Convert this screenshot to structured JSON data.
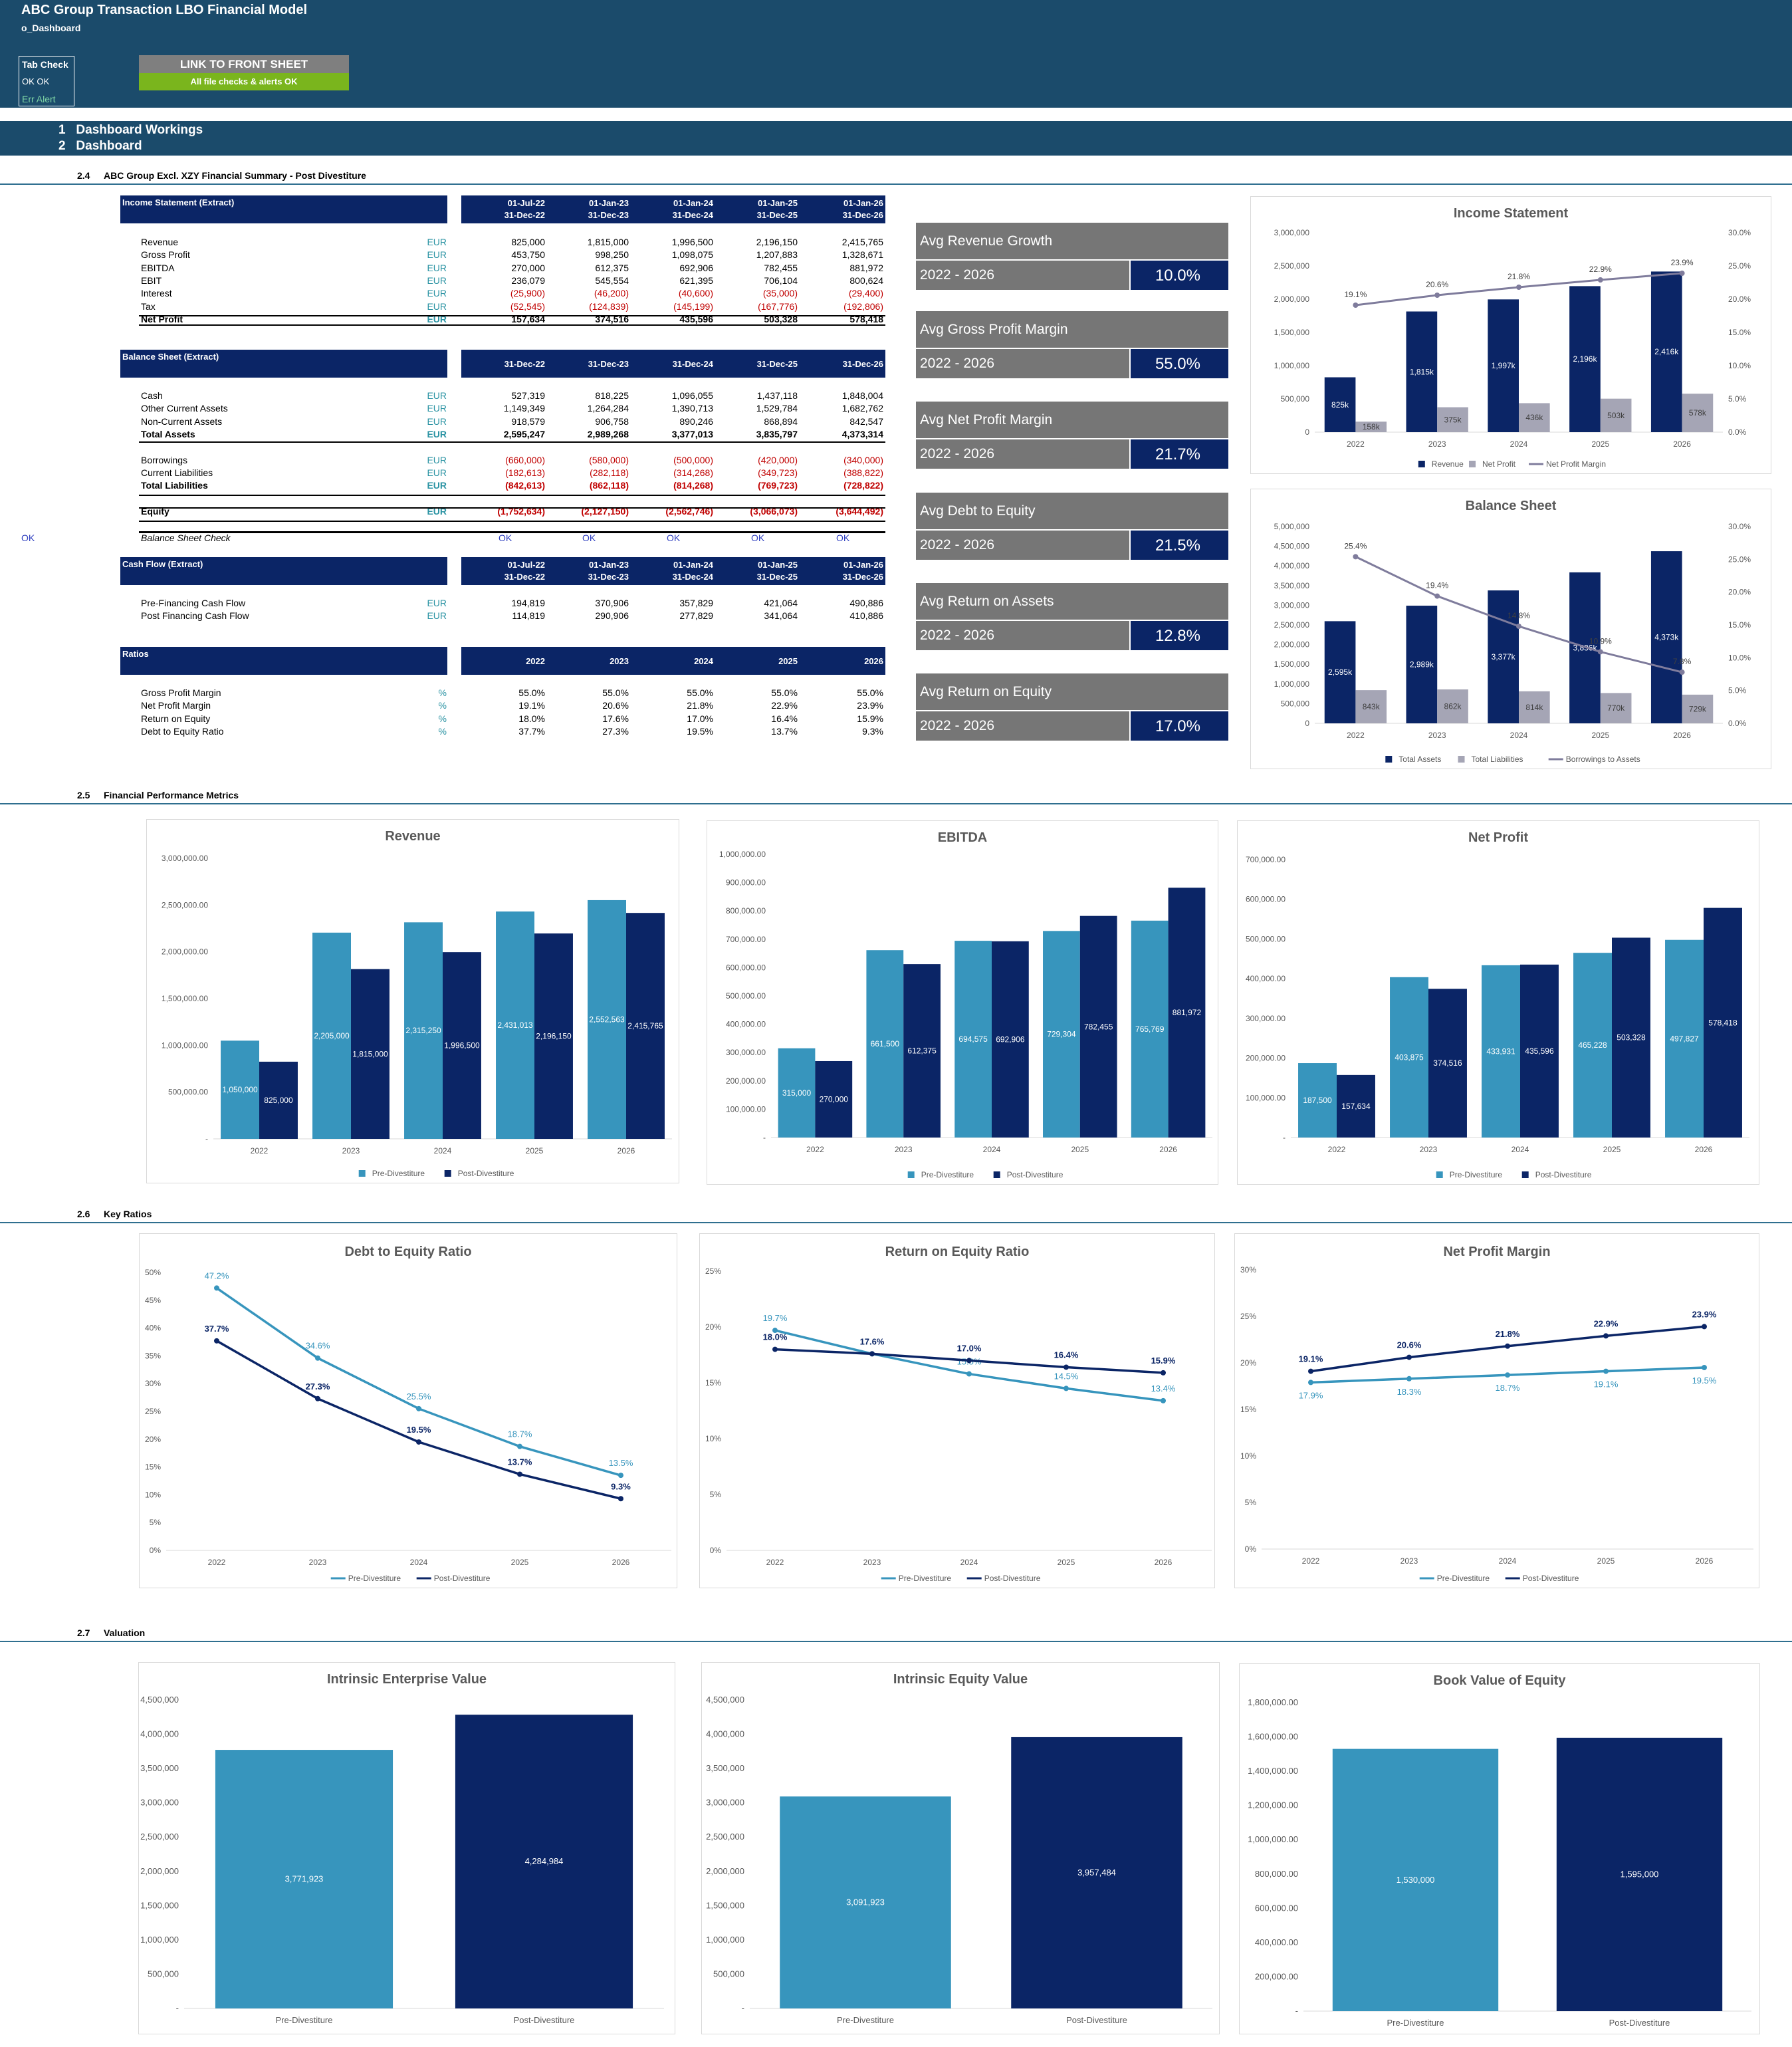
{
  "header": {
    "title": "ABC Group Transaction LBO Financial Model",
    "sheet": "o_Dashboard",
    "tab_check": {
      "heading": "Tab Check",
      "status": "OK  OK",
      "alert": "Err Alert"
    },
    "front_link": "LINK TO FRONT SHEET",
    "checks_status": "All file checks & alerts OK"
  },
  "nav": [
    {
      "num": "1",
      "label": "Dashboard Workings"
    },
    {
      "num": "2",
      "label": "Dashboard"
    }
  ],
  "sections": {
    "s24": {
      "num": "2.4",
      "title": "ABC Group Excl. XZY Financial Summary - Post Divestiture"
    },
    "s25": {
      "num": "2.5",
      "title": "Financial Performance Metrics"
    },
    "s26": {
      "num": "2.6",
      "title": "Key Ratios"
    },
    "s27": {
      "num": "2.7",
      "title": "Valuation"
    }
  },
  "income": {
    "title": "Income Statement (Extract)",
    "dates1": [
      "01-Jul-22",
      "01-Jan-23",
      "01-Jan-24",
      "01-Jan-25",
      "01-Jan-26"
    ],
    "dates2": [
      "31-Dec-22",
      "31-Dec-23",
      "31-Dec-24",
      "31-Dec-25",
      "31-Dec-26"
    ],
    "rows": [
      {
        "label": "Revenue",
        "unit": "EUR",
        "values": [
          "825,000",
          "1,815,000",
          "1,996,500",
          "2,196,150",
          "2,415,765"
        ]
      },
      {
        "label": "Gross Profit",
        "unit": "EUR",
        "values": [
          "453,750",
          "998,250",
          "1,098,075",
          "1,207,883",
          "1,328,671"
        ]
      },
      {
        "label": "EBITDA",
        "unit": "EUR",
        "values": [
          "270,000",
          "612,375",
          "692,906",
          "782,455",
          "881,972"
        ]
      },
      {
        "label": "EBIT",
        "unit": "EUR",
        "values": [
          "236,079",
          "545,554",
          "621,395",
          "706,104",
          "800,624"
        ]
      },
      {
        "label": "Interest",
        "unit": "EUR",
        "values": [
          "(25,900)",
          "(46,200)",
          "(40,600)",
          "(35,000)",
          "(29,400)"
        ]
      },
      {
        "label": "Tax",
        "unit": "EUR",
        "values": [
          "(52,545)",
          "(124,839)",
          "(145,199)",
          "(167,776)",
          "(192,806)"
        ]
      },
      {
        "label": "Net Profit",
        "unit": "EUR",
        "values": [
          "157,634",
          "374,516",
          "435,596",
          "503,328",
          "578,418"
        ]
      }
    ]
  },
  "balance": {
    "title": "Balance Sheet (Extract)",
    "dates": [
      "31-Dec-22",
      "31-Dec-23",
      "31-Dec-24",
      "31-Dec-25",
      "31-Dec-26"
    ],
    "rows": [
      {
        "label": "Cash",
        "unit": "EUR",
        "values": [
          "527,319",
          "818,225",
          "1,096,055",
          "1,437,118",
          "1,848,004"
        ]
      },
      {
        "label": "Other Current Assets",
        "unit": "EUR",
        "values": [
          "1,149,349",
          "1,264,284",
          "1,390,713",
          "1,529,784",
          "1,682,762"
        ]
      },
      {
        "label": "Non-Current Assets",
        "unit": "EUR",
        "values": [
          "918,579",
          "906,758",
          "890,246",
          "868,894",
          "842,547"
        ]
      },
      {
        "label": "Total Assets",
        "unit": "EUR",
        "values": [
          "2,595,247",
          "2,989,268",
          "3,377,013",
          "3,835,797",
          "4,373,314"
        ]
      },
      {
        "label": "Borrowings",
        "unit": "EUR",
        "values": [
          "(660,000)",
          "(580,000)",
          "(500,000)",
          "(420,000)",
          "(340,000)"
        ]
      },
      {
        "label": "Current Liabilities",
        "unit": "EUR",
        "values": [
          "(182,613)",
          "(282,118)",
          "(314,268)",
          "(349,723)",
          "(388,822)"
        ]
      },
      {
        "label": "Total Liabilities",
        "unit": "EUR",
        "values": [
          "(842,613)",
          "(862,118)",
          "(814,268)",
          "(769,723)",
          "(728,822)"
        ]
      },
      {
        "label": "Equity",
        "unit": "EUR",
        "values": [
          "(1,752,634)",
          "(2,127,150)",
          "(2,562,746)",
          "(3,066,073)",
          "(3,644,492)"
        ]
      }
    ],
    "check_left": "OK",
    "check_label": "Balance Sheet Check",
    "checks": [
      "OK",
      "OK",
      "OK",
      "OK",
      "OK"
    ]
  },
  "cashflow": {
    "title": "Cash Flow (Extract)",
    "dates1": [
      "01-Jul-22",
      "01-Jan-23",
      "01-Jan-24",
      "01-Jan-25",
      "01-Jan-26"
    ],
    "dates2": [
      "31-Dec-22",
      "31-Dec-23",
      "31-Dec-24",
      "31-Dec-25",
      "31-Dec-26"
    ],
    "rows": [
      {
        "label": "Pre-Financing Cash Flow",
        "unit": "EUR",
        "values": [
          "194,819",
          "370,906",
          "357,829",
          "421,064",
          "490,886"
        ]
      },
      {
        "label": "Post Financing Cash Flow",
        "unit": "EUR",
        "values": [
          "114,819",
          "290,906",
          "277,829",
          "341,064",
          "410,886"
        ]
      }
    ]
  },
  "ratios": {
    "title": "Ratios",
    "years": [
      "2022",
      "2023",
      "2024",
      "2025",
      "2026"
    ],
    "rows": [
      {
        "label": "Gross Profit Margin",
        "unit": "%",
        "values": [
          "55.0%",
          "55.0%",
          "55.0%",
          "55.0%",
          "55.0%"
        ]
      },
      {
        "label": "Net Profit Margin",
        "unit": "%",
        "values": [
          "19.1%",
          "20.6%",
          "21.8%",
          "22.9%",
          "23.9%"
        ]
      },
      {
        "label": "Return on Equity",
        "unit": "%",
        "values": [
          "18.0%",
          "17.6%",
          "17.0%",
          "16.4%",
          "15.9%"
        ]
      },
      {
        "label": "Debt to Equity Ratio",
        "unit": "%",
        "values": [
          "37.7%",
          "27.3%",
          "19.5%",
          "13.7%",
          "9.3%"
        ]
      }
    ]
  },
  "kpis": [
    {
      "label": "Avg Revenue Growth",
      "period": "2022 - 2026",
      "value": "10.0%"
    },
    {
      "label": "Avg Gross Profit Margin",
      "period": "2022 - 2026",
      "value": "55.0%"
    },
    {
      "label": "Avg Net Profit Margin",
      "period": "2022 - 2026",
      "value": "21.7%"
    },
    {
      "label": "Avg Debt to Equity",
      "period": "2022 - 2026",
      "value": "21.5%"
    },
    {
      "label": "Avg Return on Assets",
      "period": "2022 - 2026",
      "value": "12.8%"
    },
    {
      "label": "Avg Return on Equity",
      "period": "2022 - 2026",
      "value": "17.0%"
    }
  ],
  "colors": {
    "navy": "#0b2566",
    "teal": "#3795bd",
    "grey": "#a5a5b5",
    "lineGrey": "#7f7c9c",
    "banner": "#1b4b6b"
  },
  "chart_data": [
    {
      "id": "income_statement",
      "type": "bar",
      "title": "Income Statement",
      "categories": [
        "2022",
        "2023",
        "2024",
        "2025",
        "2026"
      ],
      "series": [
        {
          "name": "Revenue",
          "values": [
            825000,
            1815000,
            1996500,
            2196150,
            2415765
          ],
          "labels": [
            "825k",
            "1,815k",
            "1,997k",
            "2,196k",
            "2,416k"
          ]
        },
        {
          "name": "Net Profit",
          "values": [
            157634,
            374516,
            435596,
            503328,
            578418
          ],
          "labels": [
            "158k",
            "375k",
            "436k",
            "503k",
            "578k"
          ]
        }
      ],
      "line": {
        "name": "Net Profit Margin",
        "values": [
          19.1,
          20.6,
          21.8,
          22.9,
          23.9
        ],
        "labels": [
          "19.1%",
          "20.6%",
          "21.8%",
          "22.9%",
          "23.9%"
        ]
      },
      "ylim": [
        0,
        3000000
      ],
      "y2lim": [
        0,
        30
      ],
      "yticks": [
        "3,000,000",
        "2,500,000",
        "2,000,000",
        "1,500,000",
        "1,000,000",
        "500,000",
        "0"
      ],
      "y2ticks": [
        "30.0%",
        "25.0%",
        "20.0%",
        "15.0%",
        "10.0%",
        "5.0%",
        "0.0%"
      ],
      "legend": "bottom"
    },
    {
      "id": "balance_sheet",
      "type": "bar",
      "title": "Balance Sheet",
      "categories": [
        "2022",
        "2023",
        "2024",
        "2025",
        "2026"
      ],
      "series": [
        {
          "name": "Total Assets",
          "values": [
            2595247,
            2989268,
            3377013,
            3835797,
            4373314
          ],
          "labels": [
            "2,595k",
            "2,989k",
            "3,377k",
            "3,836k",
            "4,373k"
          ]
        },
        {
          "name": "Total Liabilities",
          "values": [
            842613,
            862118,
            814268,
            769723,
            728822
          ],
          "labels": [
            "843k",
            "862k",
            "814k",
            "770k",
            "729k"
          ]
        }
      ],
      "line": {
        "name": "Borrowings to Assets",
        "values": [
          25.4,
          19.4,
          14.8,
          10.9,
          7.8
        ],
        "labels": [
          "25.4%",
          "19.4%",
          "14.8%",
          "10.9%",
          "7.8%"
        ]
      },
      "ylim": [
        0,
        5000000
      ],
      "y2lim": [
        0,
        30
      ],
      "yticks": [
        "5,000,000",
        "4,500,000",
        "4,000,000",
        "3,500,000",
        "3,000,000",
        "2,500,000",
        "2,000,000",
        "1,500,000",
        "1,000,000",
        "500,000",
        "0"
      ],
      "y2ticks": [
        "30.0%",
        "25.0%",
        "20.0%",
        "15.0%",
        "10.0%",
        "5.0%",
        "0.0%"
      ],
      "legend": "bottom"
    },
    {
      "id": "revenue",
      "type": "bar",
      "title": "Revenue",
      "categories": [
        "2022",
        "2023",
        "2024",
        "2025",
        "2026"
      ],
      "series": [
        {
          "name": "Pre-Divestiture",
          "values": [
            1050000,
            2205000,
            2315250,
            2431013,
            2552563
          ],
          "labels": [
            "1,050,000",
            "2,205,000",
            "2,315,250",
            "2,431,013",
            "2,552,563"
          ]
        },
        {
          "name": "Post-Divestiture",
          "values": [
            825000,
            1815000,
            1996500,
            2196150,
            2415765
          ],
          "labels": [
            "825,000",
            "1,815,000",
            "1,996,500",
            "2,196,150",
            "2,415,765"
          ]
        }
      ],
      "ylim": [
        0,
        3000000
      ],
      "yticks": [
        "3,000,000.00",
        "2,500,000.00",
        "2,000,000.00",
        "1,500,000.00",
        "1,000,000.00",
        "500,000.00",
        "-"
      ],
      "legend": "bottom"
    },
    {
      "id": "ebitda",
      "type": "bar",
      "title": "EBITDA",
      "categories": [
        "2022",
        "2023",
        "2024",
        "2025",
        "2026"
      ],
      "series": [
        {
          "name": "Pre-Divestiture",
          "values": [
            315000,
            661500,
            694575,
            729304,
            765769
          ],
          "labels": [
            "315,000",
            "661,500",
            "694,575",
            "729,304",
            "765,769"
          ]
        },
        {
          "name": "Post-Divestiture",
          "values": [
            270000,
            612375,
            692906,
            782455,
            881972
          ],
          "labels": [
            "270,000",
            "612,375",
            "692,906",
            "782,455",
            "881,972"
          ]
        }
      ],
      "ylim": [
        0,
        1000000
      ],
      "yticks": [
        "1,000,000.00",
        "900,000.00",
        "800,000.00",
        "700,000.00",
        "600,000.00",
        "500,000.00",
        "400,000.00",
        "300,000.00",
        "200,000.00",
        "100,000.00",
        "-"
      ],
      "legend": "bottom"
    },
    {
      "id": "net_profit",
      "type": "bar",
      "title": "Net Profit",
      "categories": [
        "2022",
        "2023",
        "2024",
        "2025",
        "2026"
      ],
      "series": [
        {
          "name": "Pre-Divestiture",
          "values": [
            187500,
            403875,
            433931,
            465228,
            497827
          ],
          "labels": [
            "187,500",
            "403,875",
            "433,931",
            "465,228",
            "497,827"
          ]
        },
        {
          "name": "Post-Divestiture",
          "values": [
            157634,
            374516,
            435596,
            503328,
            578418
          ],
          "labels": [
            "157,634",
            "374,516",
            "435,596",
            "503,328",
            "578,418"
          ]
        }
      ],
      "ylim": [
        0,
        700000
      ],
      "yticks": [
        "700,000.00",
        "600,000.00",
        "500,000.00",
        "400,000.00",
        "300,000.00",
        "200,000.00",
        "100,000.00",
        "-"
      ],
      "legend": "bottom"
    },
    {
      "id": "debt_equity",
      "type": "line",
      "title": "Debt to Equity Ratio",
      "categories": [
        "2022",
        "2023",
        "2024",
        "2025",
        "2026"
      ],
      "series": [
        {
          "name": "Pre-Divestiture",
          "values": [
            47.2,
            34.6,
            25.5,
            18.7,
            13.5
          ],
          "labels": [
            "47.2%",
            "34.6%",
            "25.5%",
            "18.7%",
            "13.5%"
          ]
        },
        {
          "name": "Post-Divestiture",
          "values": [
            37.7,
            27.3,
            19.5,
            13.7,
            9.3
          ],
          "labels": [
            "37.7%",
            "27.3%",
            "19.5%",
            "13.7%",
            "9.3%"
          ]
        }
      ],
      "ylim": [
        0,
        50
      ],
      "yticks": [
        "50%",
        "45%",
        "40%",
        "35%",
        "30%",
        "25%",
        "20%",
        "15%",
        "10%",
        "5%",
        "0%"
      ],
      "legend": "bottom"
    },
    {
      "id": "return_equity",
      "type": "line",
      "title": "Return on Equity Ratio",
      "categories": [
        "2022",
        "2023",
        "2024",
        "2025",
        "2026"
      ],
      "series": [
        {
          "name": "Pre-Divestiture",
          "values": [
            19.7,
            17.6,
            15.8,
            14.5,
            13.4
          ],
          "labels": [
            "19.7%",
            "",
            "15.8%",
            "14.5%",
            "13.4%"
          ]
        },
        {
          "name": "Post-Divestiture",
          "values": [
            18.0,
            17.6,
            17.0,
            16.4,
            15.9
          ],
          "labels": [
            "18.0%",
            "17.6%",
            "17.0%",
            "16.4%",
            "15.9%"
          ]
        }
      ],
      "ylim": [
        0,
        25
      ],
      "yticks": [
        "25%",
        "20%",
        "15%",
        "10%",
        "5%",
        "0%"
      ],
      "legend": "bottom"
    },
    {
      "id": "net_profit_margin",
      "type": "line",
      "title": "Net Profit Margin",
      "categories": [
        "2022",
        "2023",
        "2024",
        "2025",
        "2026"
      ],
      "series": [
        {
          "name": "Pre-Divestiture",
          "values": [
            17.9,
            18.3,
            18.7,
            19.1,
            19.5
          ],
          "labels": [
            "17.9%",
            "18.3%",
            "18.7%",
            "19.1%",
            "19.5%"
          ]
        },
        {
          "name": "Post-Divestiture",
          "values": [
            19.1,
            20.6,
            21.8,
            22.9,
            23.9
          ],
          "labels": [
            "19.1%",
            "20.6%",
            "21.8%",
            "22.9%",
            "23.9%"
          ]
        }
      ],
      "ylim": [
        0,
        30
      ],
      "yticks": [
        "30%",
        "25%",
        "20%",
        "15%",
        "10%",
        "5%",
        "0%"
      ],
      "legend": "bottom"
    },
    {
      "id": "ev",
      "type": "bar",
      "title": "Intrinsic Enterprise Value",
      "categories": [
        "Pre-Divestiture",
        "Post-Divestiture"
      ],
      "values": [
        3771923,
        4284984
      ],
      "labels": [
        "3,771,923",
        "4,284,984"
      ],
      "ylim": [
        0,
        4500000
      ],
      "yticks": [
        "4,500,000",
        "4,000,000",
        "3,500,000",
        "3,000,000",
        "2,500,000",
        "2,000,000",
        "1,500,000",
        "1,000,000",
        "500,000",
        "-"
      ]
    },
    {
      "id": "eqv",
      "type": "bar",
      "title": "Intrinsic Equity Value",
      "categories": [
        "Pre-Divestiture",
        "Post-Divestiture"
      ],
      "values": [
        3091923,
        3957484
      ],
      "labels": [
        "3,091,923",
        "3,957,484"
      ],
      "ylim": [
        0,
        4500000
      ],
      "yticks": [
        "4,500,000",
        "4,000,000",
        "3,500,000",
        "3,000,000",
        "2,500,000",
        "2,000,000",
        "1,500,000",
        "1,000,000",
        "500,000",
        "-"
      ]
    },
    {
      "id": "bve",
      "type": "bar",
      "title": "Book Value of Equity",
      "categories": [
        "Pre-Divestiture",
        "Post-Divestiture"
      ],
      "values": [
        1530000,
        1595000
      ],
      "labels": [
        "1,530,000",
        "1,595,000"
      ],
      "ylim": [
        0,
        1800000
      ],
      "yticks": [
        "1,800,000.00",
        "1,600,000.00",
        "1,400,000.00",
        "1,200,000.00",
        "1,000,000.00",
        "800,000.00",
        "600,000.00",
        "400,000.00",
        "200,000.00",
        "-"
      ]
    }
  ]
}
